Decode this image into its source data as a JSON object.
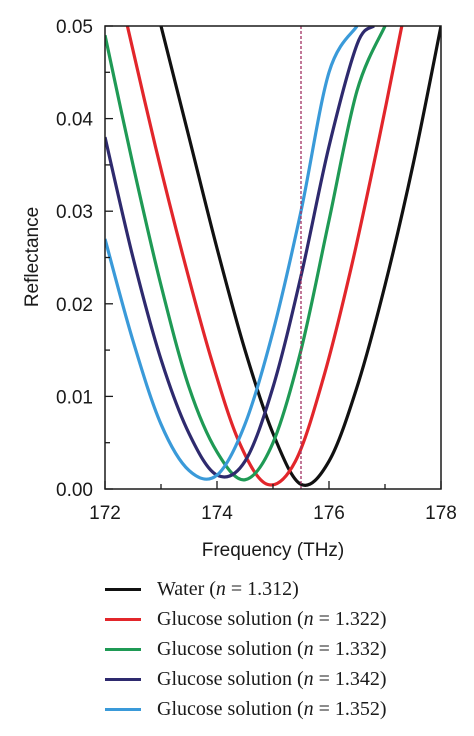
{
  "chart_data": {
    "type": "line",
    "xlabel": "Frequency (THz)",
    "ylabel": "Reflectance",
    "xlim": [
      172,
      178
    ],
    "ylim": [
      0.0,
      0.05
    ],
    "x_ticks": [
      "172",
      "174",
      "176",
      "178"
    ],
    "y_ticks": [
      "0.00",
      "0.01",
      "0.02",
      "0.03",
      "0.04",
      "0.05"
    ],
    "grid": false,
    "reference_line": {
      "x": 175.5,
      "color": "#a03060",
      "style": "dashed"
    },
    "series": [
      {
        "name": "Water (n = 1.312)",
        "color": "#111111",
        "x": [
          173.0,
          173.5,
          174.0,
          174.5,
          175.0,
          175.5,
          176.0,
          176.5,
          177.0,
          177.5,
          178.0
        ],
        "y": [
          0.05,
          0.038,
          0.026,
          0.015,
          0.006,
          0.0005,
          0.003,
          0.011,
          0.022,
          0.035,
          0.05
        ]
      },
      {
        "name": "Glucose solution (n = 1.322)",
        "color": "#e2262b",
        "x": [
          172.4,
          172.9,
          173.4,
          173.9,
          174.4,
          174.9,
          175.4,
          175.9,
          176.4,
          176.9,
          177.3
        ],
        "y": [
          0.05,
          0.037,
          0.025,
          0.014,
          0.005,
          0.0005,
          0.003,
          0.012,
          0.024,
          0.038,
          0.05
        ]
      },
      {
        "name": "Glucose solution (n = 1.332)",
        "color": "#1f9a55",
        "x": [
          172.0,
          172.5,
          173.0,
          173.5,
          174.0,
          174.5,
          175.0,
          175.5,
          176.0,
          176.5,
          177.0
        ],
        "y": [
          0.049,
          0.035,
          0.022,
          0.011,
          0.004,
          0.001,
          0.005,
          0.015,
          0.029,
          0.043,
          0.05
        ]
      },
      {
        "name": "Glucose solution (n = 1.342)",
        "color": "#2e2a6e",
        "x": [
          172.0,
          172.5,
          173.0,
          173.5,
          174.0,
          174.5,
          175.0,
          175.5,
          176.0,
          176.5,
          176.8
        ],
        "y": [
          0.038,
          0.025,
          0.014,
          0.006,
          0.0015,
          0.003,
          0.011,
          0.023,
          0.037,
          0.048,
          0.05
        ]
      },
      {
        "name": "Glucose solution (n = 1.352)",
        "color": "#3a9ad9",
        "x": [
          172.0,
          172.5,
          173.0,
          173.5,
          174.0,
          174.5,
          175.0,
          175.5,
          176.0,
          176.5
        ],
        "y": [
          0.027,
          0.016,
          0.007,
          0.002,
          0.0015,
          0.007,
          0.017,
          0.03,
          0.045,
          0.05
        ]
      }
    ]
  },
  "legend": {
    "items": [
      {
        "prefix": "Water (",
        "n": "n",
        "suffix": " = 1.312)",
        "color": "#111111"
      },
      {
        "prefix": "Glucose solution (",
        "n": "n",
        "suffix": " = 1.322)",
        "color": "#e2262b"
      },
      {
        "prefix": "Glucose solution (",
        "n": "n",
        "suffix": " = 1.332)",
        "color": "#1f9a55"
      },
      {
        "prefix": "Glucose solution (",
        "n": "n",
        "suffix": " = 1.342)",
        "color": "#2e2a6e"
      },
      {
        "prefix": "Glucose solution (",
        "n": "n",
        "suffix": " = 1.352)",
        "color": "#3a9ad9"
      }
    ]
  }
}
